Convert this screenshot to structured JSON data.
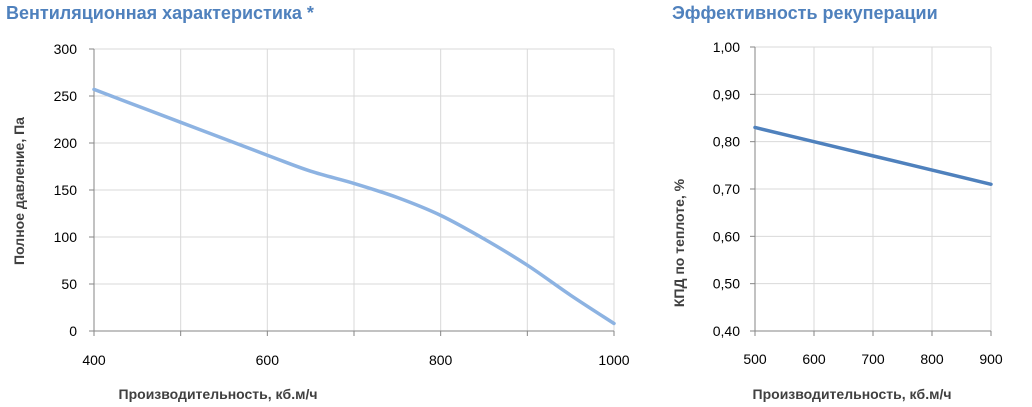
{
  "chart_data": [
    {
      "type": "line",
      "title": "Вентиляционная характеристика *",
      "xlabel": "Производительность, кб.м/ч",
      "ylabel": "Полное  давление, Па",
      "xlim": [
        400,
        1000
      ],
      "ylim": [
        0,
        300
      ],
      "x_ticks": [
        "400",
        "600",
        "800",
        "1000"
      ],
      "y_ticks": [
        "0",
        "50",
        "100",
        "150",
        "200",
        "250",
        "300"
      ],
      "grid": true,
      "series": [
        {
          "color": "#8db3e2",
          "x": [
            400,
            500,
            600,
            650,
            700,
            750,
            800,
            850,
            900,
            950,
            1000
          ],
          "y": [
            257,
            222,
            187,
            170,
            157,
            142,
            123,
            98,
            70,
            38,
            8
          ]
        }
      ]
    },
    {
      "type": "line",
      "title": "Эффективность рекуперации",
      "xlabel": "Производительность, кб.м/ч",
      "ylabel": "КПД по теплоте, %",
      "xlim": [
        500,
        900
      ],
      "ylim": [
        0.4,
        1.0
      ],
      "x_ticks": [
        "500",
        "600",
        "700",
        "800",
        "900"
      ],
      "y_ticks": [
        "0,40",
        "0,50",
        "0,60",
        "0,70",
        "0,80",
        "0,90",
        "1,00"
      ],
      "grid": true,
      "series": [
        {
          "color": "#4f81bd",
          "x": [
            500,
            600,
            700,
            800,
            900
          ],
          "y": [
            0.83,
            0.8,
            0.77,
            0.74,
            0.71
          ]
        }
      ]
    }
  ]
}
